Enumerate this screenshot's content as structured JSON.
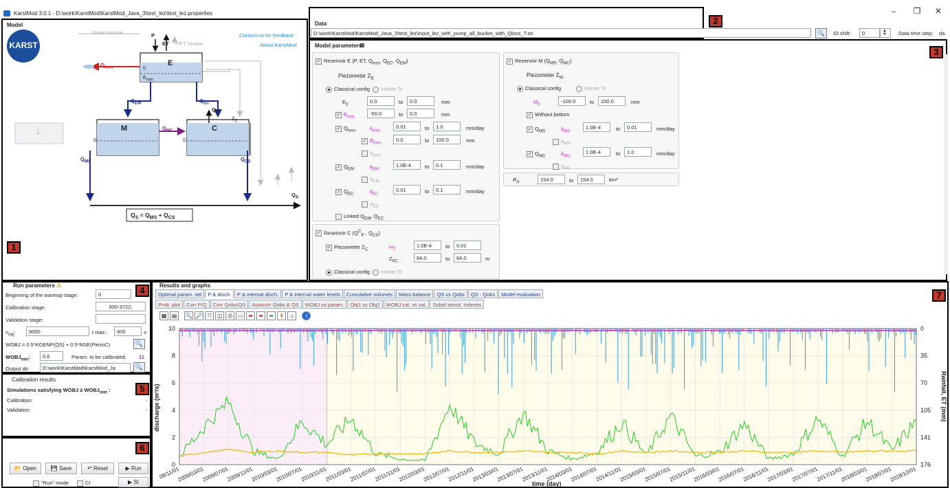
{
  "window": {
    "title": "KarstMod 3.0.1 - D:\\work\\KarstMod\\KarstMod_Java_3\\test_lez\\test_lez.properties",
    "minimize": "–",
    "maximize": "❐",
    "close": "✕"
  },
  "model": {
    "section": "Model",
    "contact": "Contact us for feedback",
    "about": "About KarstMod",
    "logo_text": "KARST",
    "labels": {
      "snow": "Snow routine",
      "pet": "PET routine",
      "p": "P",
      "et": "ET",
      "qloss": "Q",
      "qloss_sub": "loss",
      "e_res": "E",
      "emin": "E",
      "emin_sub": "min",
      "zero_e": "0",
      "qem": "Q",
      "qem_sub": "EM",
      "qec": "Q",
      "qec_sub": "EC",
      "m_res": "M",
      "c_res": "C",
      "qmc": "Q",
      "qmc_sub": "MC",
      "qms": "Q",
      "qms_sub": "MS",
      "qcs": "Q",
      "qcs_sub": "CS",
      "qs": "Q",
      "qs_sub": "S",
      "l_res": "L",
      "zc": "Z",
      "zc_sub": "C",
      "ze": "Z",
      "zm": "Z",
      "zl": "Z",
      "zero_m": "0",
      "zero_c": "0",
      "qby": "Q",
      "qbyec": "Q",
      "qes": "Q",
      "qbyes": "Q",
      "qpc": "Q",
      "qpc_sub": "P",
      "qem2": "Q",
      "qtopm": "Q"
    },
    "equation": "Q",
    "equation_parts": [
      "S",
      " = Q",
      "MS",
      " + Q",
      "CS"
    ]
  },
  "data_panel": {
    "section": "Data",
    "path": "D:\\work\\KarstMod\\KarstMod_Java_3\\test_lez\\input_lez_with_pump_all_bucket_with_Qloss_T.txt",
    "io_shift_label": "IO shift:",
    "io_shift_value": "0",
    "time_step_label": "Data time step:",
    "time_step_value": "da"
  },
  "params": {
    "section": "Model parameters",
    "resE": {
      "title": "Reservoir E (P, ET, Q",
      "title_tail": ")",
      "piezo": "Piezometer Z",
      "piezo_sub": "E",
      "classical": "Classical config",
      "infinite": "Infinite Tc",
      "rows": [
        {
          "name": "E",
          "sub": "0",
          "from": "0.0",
          "to": "0.0",
          "unit": "mm"
        },
        {
          "name": "E",
          "sub": "min",
          "from": "-50.0",
          "to": "0.0",
          "unit": "mm"
        },
        {
          "name": "Q",
          "sub": "loss",
          "k": "k",
          "ksub": "loss",
          "from": "0.01",
          "to": "1.0",
          "unit": "mm/day"
        },
        {
          "name": "E",
          "sub": "loss",
          "from": "0.0",
          "to": "100.0",
          "unit": "mm"
        },
        {
          "name": "α",
          "sub": "loss"
        },
        {
          "name": "Q",
          "sub": "EM",
          "k": "k",
          "ksub": "EM",
          "from": "1.0E-4",
          "to": "0.1",
          "unit": "mm/day"
        },
        {
          "name": "α",
          "sub": "EM"
        },
        {
          "name": "Q",
          "sub": "EC",
          "k": "k",
          "ksub": "EC",
          "from": "0.01",
          "to": "0.1",
          "unit": "mm/day"
        },
        {
          "name": "α",
          "sub": "EC"
        }
      ],
      "linked": "Linked Q"
    },
    "resM": {
      "title": "Reservoir M  (Q",
      "piezo": "Piezometer Z",
      "piezo_sub": "M",
      "classical": "Classical config",
      "infinite": "Infinite Tc",
      "m0": {
        "name": "M",
        "sub": "0",
        "from": "-100.0",
        "to": "100.0",
        "unit": "mm"
      },
      "without_bottom": "Without bottom",
      "qms": {
        "name": "Q",
        "sub": "MS",
        "k": "k",
        "ksub": "MS",
        "from": "1.0E-4",
        "to": "0.01",
        "unit": "mm/day"
      },
      "ams": "α",
      "qmc": {
        "name": "Q",
        "sub": "MC",
        "k": "k",
        "ksub": "MC",
        "from": "1.0E-4",
        "to": "1.0",
        "unit": "mm/day"
      },
      "amc": "α",
      "ra": {
        "name": "R",
        "sub": "A",
        "from": "154.0",
        "to": "154.0",
        "unit": "km²"
      }
    },
    "resC": {
      "title": "Reservoir C  (Q",
      "piezo": "Piezometer Z",
      "piezo_sub": "C",
      "omega": "ω",
      "omega_sub": "C",
      "omega_from": "1.0E-4",
      "omega_to": "0.01",
      "z0c": "Z",
      "z0c_sub": "0C",
      "z_from": "64.0",
      "z_to": "64.0",
      "z_unit": "m",
      "classical": "Classical config",
      "infinite": "Infinite Tc"
    },
    "to": "to"
  },
  "run": {
    "section": "Run parameters",
    "warmup_label": "Beginning of the warmup stage:",
    "warmup_value": "0",
    "calib_label": "Calibration stage:",
    "calib_value": "930-3722;",
    "valid_label": "Validation stage:",
    "valid_value": "",
    "nobj_label": "n",
    "nobj_sub": "obj",
    "nobj_value": "5000",
    "tmax_label": "t max.:",
    "tmax_value": "600",
    "tmax_unit": "s",
    "wobj": "WOBJ = 0.5*KGENP(QS) + 0.5*NSE(PiezoC)",
    "wobjmin_label": "WOBJ",
    "wobjmin_sub": "min",
    "wobjmin_value": "0.6",
    "param_cal_label": "Param. to be calibrated:",
    "param_cal_value": "11",
    "output_label": "Output dir:",
    "output_value": "D:\\work\\KarstMod\\KarstMod_Ja"
  },
  "calib": {
    "section": "Calibration results",
    "sims": "Simulations satisfying WOBJ ≥ WOBJ",
    "calibration": "Calibration:",
    "validation": "Validation:",
    "calib_val": "-",
    "valid_val": "-"
  },
  "actions": {
    "open": "Open",
    "save": "Save",
    "reset": "Reset",
    "run": "Run",
    "run_mode": "\"Run\" mode",
    "ci": "CI",
    "si": "SI"
  },
  "results": {
    "section": "Results and graphs",
    "tabs1": [
      "Optimal param. set",
      "P & disch.",
      "P & internal disch.",
      "P & internal water levels",
      "Cumulative volumes",
      "Mass balance",
      "QS vs Qobs",
      "QS - Qobs",
      "Model evaluation"
    ],
    "tabs2": [
      "Prob. plot",
      "Corr P/Q",
      "Corr Qobs/QS",
      "Autocorr Qobs & QS",
      "WOBJ vs param.",
      "Obj1 vs Obj2",
      "WOBJ cal. vs val.",
      "Sobol sensit. indexes"
    ]
  },
  "annotations": [
    "1",
    "2",
    "3",
    "4",
    "5",
    "6",
    "7"
  ],
  "chart_data": {
    "type": "line",
    "xlabel": "time (day)",
    "ylabel": "discharge (m³/s)",
    "y2label": "Rainfall, ET (mm)",
    "ylim": [
      0,
      10
    ],
    "y2ticks": [
      "0",
      "35",
      "70",
      "105",
      "141",
      "176"
    ],
    "yticks": [
      "0",
      "2",
      "4",
      "6",
      "8",
      "10"
    ],
    "x": [
      "2008/11/01",
      "2009/03/01",
      "2009/07/01",
      "2009/11/01",
      "2010/03/01",
      "2010/07/01",
      "2010/11/01",
      "2011/03/01",
      "2011/07/01",
      "2011/11/01",
      "2012/03/01",
      "2012/07/01",
      "2012/11/01",
      "2013/03/01",
      "2013/07/01",
      "2013/11/01",
      "2014/03/01",
      "2014/07/01",
      "2014/11/01",
      "2015/03/01",
      "2015/07/01",
      "2015/11/01",
      "2016/03/01",
      "2016/07/01",
      "2016/11/01",
      "2017/03/01",
      "2017/07/01",
      "2017/11/01",
      "2018/03/01",
      "2018/07/01",
      "2018/12/01"
    ],
    "xtick_labels": [
      "08/11/01",
      "2009/03/01",
      "2009/07/01",
      "2009/11/01",
      "2010/03/01",
      "2010/07/01",
      "2010/11/01",
      "2011/03/01",
      "2011/07/01",
      "2011/11/01",
      "2012/03/01",
      "2012/07/01",
      "2012/11/01",
      "2013/03/01",
      "2013/07/01",
      "2013/11/01",
      "2014/03/01",
      "2014/07/01",
      "2014/11/01",
      "2015/03/01",
      "2015/07/01",
      "2015/11/01",
      "2016/03/01",
      "2016/07/01",
      "2016/11/01",
      "2017/03/01",
      "2017/07/01",
      "2017/11/01",
      "2018/03/01",
      "2018/07/01",
      "2018/12/01"
    ],
    "series": [
      {
        "color": "#22cc22",
        "values": [
          0.6,
          2.8,
          4.6,
          1.0,
          0.4,
          3.2,
          1.5,
          3.4,
          0.8,
          0.4,
          0.3,
          4.4,
          1.6,
          0.8,
          3.8,
          1.0,
          0.4,
          0.9,
          3.1,
          0.7,
          3.6,
          0.6,
          0.9,
          3.0,
          0.4,
          0.8,
          3.4,
          0.6,
          3.2,
          1.0,
          3.2
        ]
      },
      {
        "color": "#f0b400",
        "values": [
          0.6,
          0.9,
          1.1,
          0.9,
          1.0,
          0.9,
          0.9,
          0.7,
          0.8,
          0.8,
          0.8,
          1.0,
          0.9,
          0.9,
          1.0,
          0.9,
          0.9,
          0.8,
          1.0,
          0.9,
          1.0,
          0.9,
          0.9,
          1.0,
          0.9,
          0.9,
          1.0,
          0.9,
          1.0,
          1.0,
          1.0
        ]
      },
      {
        "color": "#3399dd"
      }
    ],
    "calib_period": [
      "2009/03/01",
      "2010/11/01"
    ],
    "valid_period": [
      "2010/11/01",
      "2018/12/01"
    ]
  }
}
